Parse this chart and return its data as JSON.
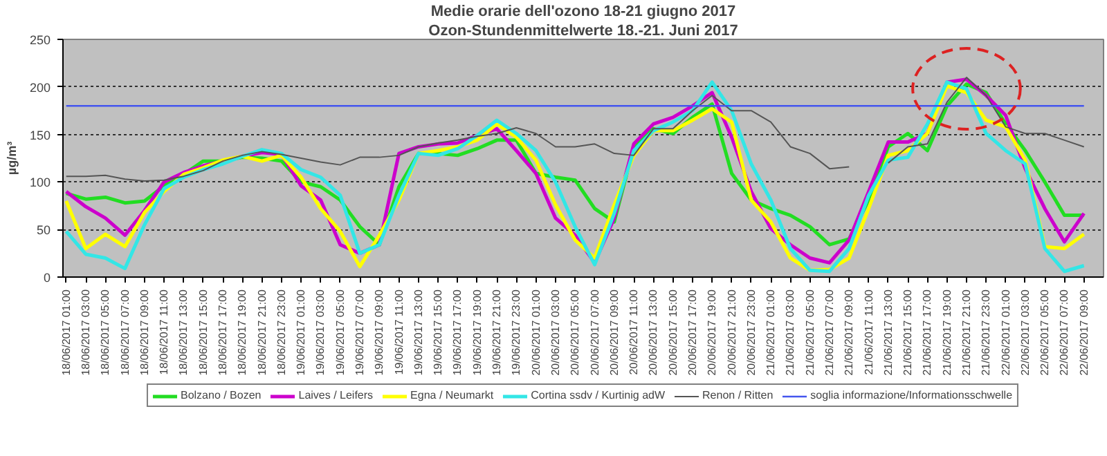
{
  "chart_data": {
    "type": "line",
    "title": "Medie orarie dell'ozono 18-21 giugno 2017",
    "subtitle": "Ozon-Stundenmittelwerte 18.-21. Juni 2017",
    "ylabel": "µg/m³",
    "x": [
      "2017-06-18T01:00",
      "2017-06-18T03:00",
      "2017-06-18T05:00",
      "2017-06-18T07:00",
      "2017-06-18T09:00",
      "2017-06-18T11:00",
      "2017-06-18T13:00",
      "2017-06-18T15:00",
      "2017-06-18T17:00",
      "2017-06-18T19:00",
      "2017-06-18T21:00",
      "2017-06-18T23:00",
      "2017-06-19T01:00",
      "2017-06-19T03:00",
      "2017-06-19T05:00",
      "2017-06-19T07:00",
      "2017-06-19T09:00",
      "2017-06-19T11:00",
      "2017-06-19T13:00",
      "2017-06-19T15:00",
      "2017-06-19T17:00",
      "2017-06-19T19:00",
      "2017-06-19T21:00",
      "2017-06-19T23:00",
      "2017-06-20T01:00",
      "2017-06-20T03:00",
      "2017-06-20T05:00",
      "2017-06-20T07:00",
      "2017-06-20T09:00",
      "2017-06-20T11:00",
      "2017-06-20T13:00",
      "2017-06-20T15:00",
      "2017-06-20T17:00",
      "2017-06-20T19:00",
      "2017-06-20T21:00",
      "2017-06-20T23:00",
      "2017-06-21T01:00",
      "2017-06-21T03:00",
      "2017-06-21T05:00",
      "2017-06-21T07:00",
      "2017-06-21T09:00",
      "2017-06-21T11:00",
      "2017-06-21T13:00",
      "2017-06-21T15:00",
      "2017-06-21T17:00",
      "2017-06-21T19:00",
      "2017-06-21T21:00",
      "2017-06-21T23:00",
      "2017-06-22T01:00",
      "2017-06-22T03:00",
      "2017-06-22T05:00",
      "2017-06-22T07:00",
      "2017-06-22T09:00"
    ],
    "xlim": [
      "2017-06-18T00:40",
      "2017-06-22T11:00"
    ],
    "xticks": [
      {
        "value": "2017-06-18T01:00",
        "label": "18/06/2017 01:00"
      },
      {
        "value": "2017-06-18T03:00",
        "label": "18/06/2017 03:00"
      },
      {
        "value": "2017-06-18T05:00",
        "label": "18/06/2017 05:00"
      },
      {
        "value": "2017-06-18T07:00",
        "label": "18/06/2017 07:00"
      },
      {
        "value": "2017-06-18T09:00",
        "label": "18/06/2017 09:00"
      },
      {
        "value": "2017-06-18T11:00",
        "label": "18/06/2017 11:00"
      },
      {
        "value": "2017-06-18T13:00",
        "label": "18/06/2017 13:00"
      },
      {
        "value": "2017-06-18T15:00",
        "label": "18/06/2017 15:00"
      },
      {
        "value": "2017-06-18T17:00",
        "label": "18/06/2017 17:00"
      },
      {
        "value": "2017-06-18T19:00",
        "label": "18/06/2017 19:00"
      },
      {
        "value": "2017-06-18T21:00",
        "label": "18/06/2017 21:00"
      },
      {
        "value": "2017-06-18T23:00",
        "label": "18/06/2017 23:00"
      },
      {
        "value": "2017-06-19T01:00",
        "label": "19/06/2017 01:00"
      },
      {
        "value": "2017-06-19T03:00",
        "label": "19/06/2017 03:00"
      },
      {
        "value": "2017-06-19T05:00",
        "label": "19/06/2017 05:00"
      },
      {
        "value": "2017-06-19T07:00",
        "label": "19/06/2017 07:00"
      },
      {
        "value": "2017-06-19T09:00",
        "label": "19/06/2017 09:00"
      },
      {
        "value": "2017-06-19T11:00",
        "label": "19/06/2017 11:00"
      },
      {
        "value": "2017-06-19T13:00",
        "label": "19/06/2017 13:00"
      },
      {
        "value": "2017-06-19T15:00",
        "label": "19/06/2017 15:00"
      },
      {
        "value": "2017-06-19T17:00",
        "label": "19/06/2017 17:00"
      },
      {
        "value": "2017-06-19T19:00",
        "label": "19/06/2017 19:00"
      },
      {
        "value": "2017-06-19T21:00",
        "label": "19/06/2017 21:00"
      },
      {
        "value": "2017-06-19T23:00",
        "label": "19/06/2017 23:00"
      },
      {
        "value": "2017-06-20T01:00",
        "label": "20/06/2017 01:00"
      },
      {
        "value": "2017-06-20T03:00",
        "label": "20/06/2017 03:00"
      },
      {
        "value": "2017-06-20T05:00",
        "label": "20/06/2017 05:00"
      },
      {
        "value": "2017-06-20T07:00",
        "label": "20/06/2017 07:00"
      },
      {
        "value": "2017-06-20T09:00",
        "label": "20/06/2017 09:00"
      },
      {
        "value": "2017-06-20T11:00",
        "label": "20/06/2017 11:00"
      },
      {
        "value": "2017-06-20T13:00",
        "label": "20/06/2017 13:00"
      },
      {
        "value": "2017-06-20T15:00",
        "label": "20/06/2017 15:00"
      },
      {
        "value": "2017-06-20T17:00",
        "label": "20/06/2017 17:00"
      },
      {
        "value": "2017-06-20T19:00",
        "label": "20/06/2017 19:00"
      },
      {
        "value": "2017-06-20T21:00",
        "label": "20/06/2017 21:00"
      },
      {
        "value": "2017-06-20T23:00",
        "label": "20/06/2017 23:00"
      },
      {
        "value": "2017-06-21T01:00",
        "label": "21/06/2017 01:00"
      },
      {
        "value": "2017-06-21T03:00",
        "label": "21/06/2017 03:00"
      },
      {
        "value": "2017-06-21T05:00",
        "label": "21/06/2017 05:00"
      },
      {
        "value": "2017-06-21T07:00",
        "label": "21/06/2017 07:00"
      },
      {
        "value": "2017-06-21T09:00",
        "label": "21/06/2017 09:00"
      },
      {
        "value": "2017-06-21T11:00",
        "label": "21/06/2017 11:00"
      },
      {
        "value": "2017-06-21T13:00",
        "label": "21/06/2017 13:00"
      },
      {
        "value": "2017-06-21T15:00",
        "label": "21/06/2017 15:00"
      },
      {
        "value": "2017-06-21T17:00",
        "label": "21/06/2017 17:00"
      },
      {
        "value": "2017-06-21T19:00",
        "label": "21/06/2017 19:00"
      },
      {
        "value": "2017-06-21T21:00",
        "label": "21/06/2017 21:00"
      },
      {
        "value": "2017-06-21T23:00",
        "label": "21/06/2017 23:00"
      },
      {
        "value": "2017-06-22T01:00",
        "label": "22/06/2017 01:00"
      },
      {
        "value": "2017-06-22T03:00",
        "label": "22/06/2017 03:00"
      },
      {
        "value": "2017-06-22T05:00",
        "label": "22/06/2017 05:00"
      },
      {
        "value": "2017-06-22T07:00",
        "label": "22/06/2017 07:00"
      },
      {
        "value": "2017-06-22T09:00",
        "label": "22/06/2017 09:00"
      }
    ],
    "ylim": [
      0,
      250
    ],
    "yticks": [
      0,
      50,
      100,
      150,
      200,
      250
    ],
    "grid": "y",
    "legend": "bottom",
    "marker": "none",
    "line_style": "solid",
    "series": [
      {
        "name": "Bolzano / Bozen",
        "color": "#22dd22",
        "values": [
          88,
          82,
          84,
          78,
          80,
          96,
          108,
          122,
          122,
          126,
          125,
          122,
          100,
          95,
          81,
          53,
          34,
          95,
          130,
          130,
          128,
          135,
          144,
          144,
          109,
          105,
          102,
          72,
          58,
          137,
          156,
          151,
          168,
          182,
          109,
          81,
          72,
          65,
          53,
          34,
          40,
          81,
          137,
          151,
          133,
          180,
          203,
          194,
          161,
          133,
          100,
          65,
          65
        ]
      },
      {
        "name": "Laives / Leifers",
        "color": "#cc00cc",
        "values": [
          90,
          74,
          62,
          44,
          70,
          100,
          110,
          117,
          122,
          127,
          131,
          129,
          96,
          81,
          34,
          25,
          34,
          130,
          137,
          140,
          141,
          149,
          156,
          133,
          109,
          62,
          44,
          15,
          62,
          140,
          161,
          168,
          180,
          194,
          147,
          90,
          51,
          34,
          20,
          15,
          39,
          90,
          142,
          142,
          151,
          205,
          208,
          191,
          170,
          114,
          72,
          37,
          67
        ]
      },
      {
        "name": "Egna / Neumarkt",
        "color": "#ffff00",
        "values": [
          80,
          30,
          45,
          32,
          68,
          90,
          108,
          115,
          123,
          127,
          122,
          128,
          105,
          72,
          48,
          11,
          44,
          81,
          130,
          133,
          137,
          144,
          161,
          147,
          123,
          76,
          39,
          20,
          76,
          128,
          154,
          154,
          165,
          177,
          163,
          81,
          58,
          20,
          7,
          8,
          20,
          72,
          128,
          133,
          151,
          201,
          194,
          165,
          158,
          123,
          32,
          30,
          45
        ]
      },
      {
        "name": "Cortina ssdv / Kurtinig adW",
        "color": "#33e6e6",
        "values": [
          48,
          24,
          20,
          9,
          55,
          93,
          105,
          113,
          119,
          127,
          134,
          130,
          113,
          105,
          86,
          25,
          34,
          86,
          130,
          128,
          135,
          149,
          165,
          151,
          133,
          100,
          53,
          13,
          67,
          133,
          154,
          163,
          175,
          205,
          175,
          119,
          81,
          30,
          7,
          6,
          30,
          86,
          123,
          126,
          161,
          205,
          198,
          151,
          133,
          119,
          30,
          6,
          12
        ]
      },
      {
        "name": "Renon / Ritten",
        "color": "#555555",
        "values": [
          106,
          106,
          107,
          103,
          101,
          102,
          106,
          112,
          122,
          128,
          132,
          129,
          125,
          121,
          118,
          126,
          126,
          128,
          137,
          141,
          144,
          148,
          151,
          157,
          151,
          137,
          137,
          140,
          130,
          128,
          156,
          156,
          175,
          191,
          175,
          175,
          163,
          137,
          130,
          114,
          116,
          null,
          120,
          137,
          140,
          184,
          210,
          191,
          158,
          151,
          151,
          144,
          137
        ]
      },
      {
        "name": "soglia informazione/Informationsschwelle",
        "color": "#4455ee",
        "x": [
          "2017-06-18T01:00",
          "2017-06-22T09:00"
        ],
        "values": [
          180,
          180
        ]
      }
    ]
  }
}
